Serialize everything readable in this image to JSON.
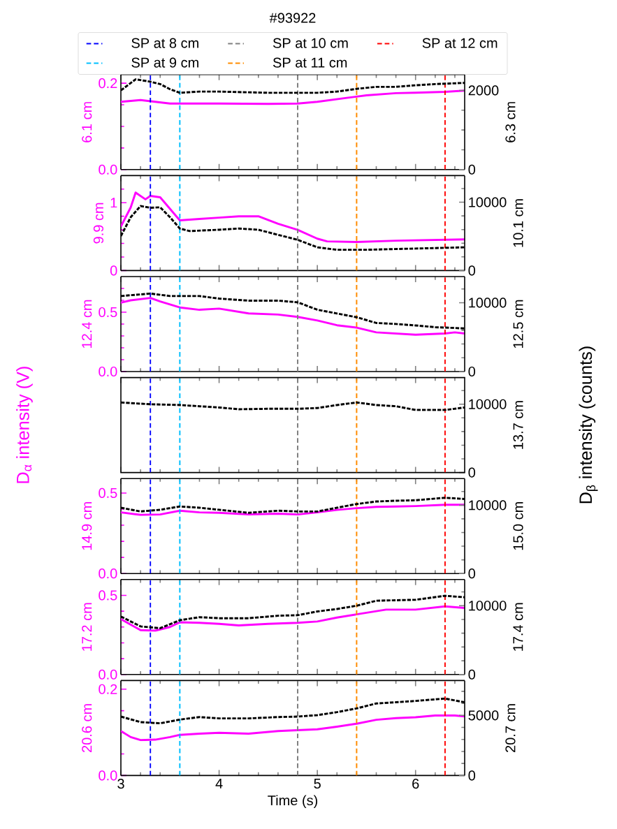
{
  "chart_data": [
    {
      "type": "line",
      "title": "#93922",
      "legend": "top",
      "tick_labels": "y",
      "ylabel": "6.1 cm",
      "y2label": "6.3 cm",
      "xlim": [
        3,
        6.5
      ],
      "xticks": [
        3,
        {
          "value": 3.2,
          "label": null
        },
        {
          "value": 3.4,
          "label": null
        },
        {
          "value": 3.6,
          "label": null
        },
        {
          "value": 3.8,
          "label": null
        },
        4,
        {
          "value": 4.2,
          "label": null
        },
        {
          "value": 4.4,
          "label": null
        },
        {
          "value": 4.6,
          "label": null
        },
        {
          "value": 4.8,
          "label": null
        },
        5,
        {
          "value": 5.2,
          "label": null
        },
        {
          "value": 5.4,
          "label": null
        },
        {
          "value": 5.6,
          "label": null
        },
        {
          "value": 5.8,
          "label": null
        },
        6,
        {
          "value": 6.2,
          "label": null
        },
        {
          "value": 6.4,
          "label": null
        }
      ],
      "ylim": [
        0,
        0.22
      ],
      "yticks": [
        {
          "value": 0,
          "label": "0.0"
        },
        {
          "value": 0.05,
          "label": null
        },
        {
          "value": 0.1,
          "label": null
        },
        {
          "value": 0.15,
          "label": null
        },
        {
          "value": 0.2,
          "label": "0.2"
        }
      ],
      "y2lim": [
        0,
        2400
      ],
      "y2ticks": [
        0,
        {
          "value": 500,
          "label": null
        },
        {
          "value": 1000,
          "label": null
        },
        {
          "value": 1500,
          "label": null
        },
        2000
      ],
      "ref_lines": [
        {
          "axis": "x",
          "value": 3.3,
          "label": "SP at 8 cm",
          "color": "#0000ff",
          "line_style": "dashed"
        },
        {
          "axis": "x",
          "value": 3.6,
          "label": "SP at 9 cm",
          "color": "#00bfff",
          "line_style": "dashed"
        },
        {
          "axis": "x",
          "value": 4.8,
          "label": "SP at 10 cm",
          "color": "#808080",
          "line_style": "dashed"
        },
        {
          "axis": "x",
          "value": 5.4,
          "label": "SP at 11 cm",
          "color": "#ff8c00",
          "line_style": "dashed"
        },
        {
          "axis": "x",
          "value": 6.3,
          "label": "SP at 12 cm",
          "color": "#ff0000",
          "line_style": "dashed"
        }
      ],
      "series": [
        {
          "color": "#ff00ff",
          "axis": "y",
          "line_style": "solid",
          "x": [
            3,
            3.2,
            3.5,
            4,
            4.5,
            4.8,
            5,
            5.3,
            5.5,
            5.8,
            6,
            6.3,
            6.5
          ],
          "values": [
            0.157,
            0.161,
            0.153,
            0.153,
            0.152,
            0.153,
            0.157,
            0.166,
            0.172,
            0.177,
            0.178,
            0.18,
            0.183
          ]
        },
        {
          "color": "#000000",
          "axis": "y2",
          "line_style": "dashed",
          "x": [
            3,
            3.15,
            3.3,
            3.4,
            3.5,
            3.6,
            3.8,
            4,
            4.5,
            4.8,
            5,
            5.2,
            5.4,
            5.6,
            5.8,
            6,
            6.2,
            6.5
          ],
          "values": [
            2000,
            2280,
            2220,
            2160,
            2030,
            1940,
            1970,
            1970,
            1940,
            1940,
            1940,
            1970,
            2040,
            2090,
            2090,
            2130,
            2160,
            2190
          ]
        }
      ]
    },
    {
      "type": "line",
      "tick_labels": "y",
      "ylabel": "9.9 cm",
      "y2label": "10.1 cm",
      "xlim": [
        3,
        6.5
      ],
      "xticks": [
        3,
        {
          "value": 3.2,
          "label": null
        },
        {
          "value": 3.4,
          "label": null
        },
        {
          "value": 3.6,
          "label": null
        },
        {
          "value": 3.8,
          "label": null
        },
        4,
        {
          "value": 4.2,
          "label": null
        },
        {
          "value": 4.4,
          "label": null
        },
        {
          "value": 4.6,
          "label": null
        },
        {
          "value": 4.8,
          "label": null
        },
        5,
        {
          "value": 5.2,
          "label": null
        },
        {
          "value": 5.4,
          "label": null
        },
        {
          "value": 5.6,
          "label": null
        },
        {
          "value": 5.8,
          "label": null
        },
        6,
        {
          "value": 6.2,
          "label": null
        },
        {
          "value": 6.4,
          "label": null
        }
      ],
      "ylim": [
        0,
        1.4
      ],
      "yticks": [
        0,
        {
          "value": 0.2,
          "label": null
        },
        {
          "value": 0.4,
          "label": null
        },
        {
          "value": 0.6,
          "label": null
        },
        {
          "value": 0.8,
          "label": null
        },
        1,
        {
          "value": 1.2,
          "label": null
        }
      ],
      "y2lim": [
        0,
        13900
      ],
      "y2ticks": [
        0,
        {
          "value": 2000,
          "label": null
        },
        {
          "value": 4000,
          "label": null
        },
        {
          "value": 6000,
          "label": null
        },
        {
          "value": 8000,
          "label": null
        },
        10000,
        {
          "value": 12000,
          "label": null
        }
      ],
      "ref_lines": [
        {
          "axis": "x",
          "value": 3.3,
          "color": "#0000ff",
          "line_style": "dashed"
        },
        {
          "axis": "x",
          "value": 3.6,
          "color": "#00bfff",
          "line_style": "dashed"
        },
        {
          "axis": "x",
          "value": 4.8,
          "color": "#808080",
          "line_style": "dashed"
        },
        {
          "axis": "x",
          "value": 5.4,
          "color": "#ff8c00",
          "line_style": "dashed"
        },
        {
          "axis": "x",
          "value": 6.3,
          "color": "#ff0000",
          "line_style": "dashed"
        }
      ],
      "series": [
        {
          "color": "#ff00ff",
          "axis": "y",
          "line_style": "solid",
          "x": [
            3,
            3.1,
            3.15,
            3.25,
            3.3,
            3.4,
            3.5,
            3.6,
            3.8,
            4,
            4.2,
            4.4,
            4.6,
            4.8,
            5,
            5.1,
            5.4,
            5.8,
            6.5
          ],
          "values": [
            0.65,
            0.93,
            1.15,
            1.05,
            1.1,
            1.08,
            0.91,
            0.74,
            0.76,
            0.78,
            0.8,
            0.8,
            0.69,
            0.6,
            0.47,
            0.43,
            0.42,
            0.44,
            0.46
          ]
        },
        {
          "color": "#000000",
          "axis": "y2",
          "line_style": "dashed",
          "x": [
            3,
            3.1,
            3.2,
            3.3,
            3.4,
            3.5,
            3.6,
            3.7,
            4,
            4.2,
            4.4,
            4.6,
            4.8,
            5,
            5.2,
            5.5,
            6,
            6.5
          ],
          "values": [
            5050,
            7800,
            9440,
            9190,
            9260,
            7800,
            6150,
            5780,
            5970,
            6150,
            5970,
            5230,
            4500,
            3400,
            3040,
            3040,
            3220,
            3400
          ]
        }
      ]
    },
    {
      "type": "line",
      "tick_labels": "y",
      "ylabel": "12.4 cm",
      "y2label": "12.5 cm",
      "xlim": [
        3,
        6.5
      ],
      "xticks": [
        3,
        {
          "value": 3.2,
          "label": null
        },
        {
          "value": 3.4,
          "label": null
        },
        {
          "value": 3.6,
          "label": null
        },
        {
          "value": 3.8,
          "label": null
        },
        4,
        {
          "value": 4.2,
          "label": null
        },
        {
          "value": 4.4,
          "label": null
        },
        {
          "value": 4.6,
          "label": null
        },
        {
          "value": 4.8,
          "label": null
        },
        5,
        {
          "value": 5.2,
          "label": null
        },
        {
          "value": 5.4,
          "label": null
        },
        {
          "value": 5.6,
          "label": null
        },
        {
          "value": 5.8,
          "label": null
        },
        6,
        {
          "value": 6.2,
          "label": null
        },
        {
          "value": 6.4,
          "label": null
        }
      ],
      "ylim": [
        0,
        0.8
      ],
      "yticks": [
        {
          "value": 0,
          "label": "0.0"
        },
        {
          "value": 0.1,
          "label": null
        },
        {
          "value": 0.2,
          "label": null
        },
        {
          "value": 0.3,
          "label": null
        },
        {
          "value": 0.4,
          "label": null
        },
        {
          "value": 0.5,
          "label": "0.5"
        },
        {
          "value": 0.6,
          "label": null
        },
        {
          "value": 0.7,
          "label": null
        }
      ],
      "y2lim": [
        0,
        13800
      ],
      "y2ticks": [
        0,
        {
          "value": 2000,
          "label": null
        },
        {
          "value": 4000,
          "label": null
        },
        {
          "value": 6000,
          "label": null
        },
        {
          "value": 8000,
          "label": null
        },
        10000,
        {
          "value": 12000,
          "label": null
        }
      ],
      "ref_lines": [
        {
          "axis": "x",
          "value": 3.3,
          "color": "#0000ff",
          "line_style": "dashed"
        },
        {
          "axis": "x",
          "value": 3.6,
          "color": "#00bfff",
          "line_style": "dashed"
        },
        {
          "axis": "x",
          "value": 4.8,
          "color": "#808080",
          "line_style": "dashed"
        },
        {
          "axis": "x",
          "value": 5.4,
          "color": "#ff8c00",
          "line_style": "dashed"
        },
        {
          "axis": "x",
          "value": 6.3,
          "color": "#ff0000",
          "line_style": "dashed"
        }
      ],
      "series": [
        {
          "color": "#ff00ff",
          "axis": "y",
          "line_style": "solid",
          "x": [
            3,
            3.1,
            3.3,
            3.4,
            3.6,
            3.8,
            4,
            4.3,
            4.6,
            4.8,
            5,
            5.2,
            5.4,
            5.6,
            5.8,
            6,
            6.3,
            6.4,
            6.5
          ],
          "values": [
            0.58,
            0.6,
            0.62,
            0.59,
            0.54,
            0.52,
            0.53,
            0.49,
            0.48,
            0.46,
            0.43,
            0.39,
            0.37,
            0.33,
            0.32,
            0.31,
            0.32,
            0.33,
            0.32
          ]
        },
        {
          "color": "#000000",
          "axis": "y2",
          "line_style": "dashed",
          "x": [
            3,
            3.3,
            3.5,
            3.8,
            4,
            4.3,
            4.6,
            4.8,
            5,
            5.2,
            5.4,
            5.6,
            5.8,
            6,
            6.2,
            6.4,
            6.5
          ],
          "values": [
            10970,
            11330,
            10970,
            10970,
            10600,
            10300,
            10300,
            10060,
            8980,
            8430,
            7890,
            7060,
            6910,
            6700,
            6440,
            6330,
            6260
          ]
        }
      ]
    },
    {
      "type": "line",
      "tick_labels": "y",
      "y2label": "13.7 cm",
      "annotations": [
        "D$_{α}$ intensity (V)",
        "D$_{β}$ intensity (counts)"
      ],
      "xlim": [
        3,
        6.5
      ],
      "xticks": [
        3,
        {
          "value": 3.2,
          "label": null
        },
        {
          "value": 3.4,
          "label": null
        },
        {
          "value": 3.6,
          "label": null
        },
        {
          "value": 3.8,
          "label": null
        },
        4,
        {
          "value": 4.2,
          "label": null
        },
        {
          "value": 4.4,
          "label": null
        },
        {
          "value": 4.6,
          "label": null
        },
        {
          "value": 4.8,
          "label": null
        },
        5,
        {
          "value": 5.2,
          "label": null
        },
        {
          "value": 5.4,
          "label": null
        },
        {
          "value": 5.6,
          "label": null
        },
        {
          "value": 5.8,
          "label": null
        },
        6,
        {
          "value": 6.2,
          "label": null
        },
        {
          "value": 6.4,
          "label": null
        }
      ],
      "y2lim": [
        0,
        13900
      ],
      "y2ticks": [
        0,
        {
          "value": 2000,
          "label": null
        },
        {
          "value": 4000,
          "label": null
        },
        {
          "value": 6000,
          "label": null
        },
        {
          "value": 8000,
          "label": null
        },
        10000,
        {
          "value": 12000,
          "label": null
        }
      ],
      "ref_lines": [
        {
          "axis": "x",
          "value": 3.3,
          "color": "#0000ff",
          "line_style": "dashed"
        },
        {
          "axis": "x",
          "value": 3.6,
          "color": "#00bfff",
          "line_style": "dashed"
        },
        {
          "axis": "x",
          "value": 4.8,
          "color": "#808080",
          "line_style": "dashed"
        },
        {
          "axis": "x",
          "value": 5.4,
          "color": "#ff8c00",
          "line_style": "dashed"
        },
        {
          "axis": "x",
          "value": 6.3,
          "color": "#ff0000",
          "line_style": "dashed"
        }
      ],
      "series": [
        {
          "color": "#000000",
          "axis": "y2",
          "line_style": "dashed",
          "x": [
            3,
            3.3,
            3.6,
            3.8,
            4,
            4.2,
            4.5,
            4.8,
            5,
            5.2,
            5.4,
            5.6,
            5.8,
            6,
            6.3,
            6.5
          ],
          "values": [
            10250,
            9990,
            9880,
            9700,
            9520,
            9260,
            9330,
            9330,
            9440,
            9880,
            10250,
            9880,
            9700,
            9150,
            9150,
            9520
          ]
        }
      ]
    },
    {
      "type": "line",
      "tick_labels": "y",
      "ylabel": "14.9 cm",
      "y2label": "15.0 cm",
      "xlim": [
        3,
        6.5
      ],
      "xticks": [
        3,
        {
          "value": 3.2,
          "label": null
        },
        {
          "value": 3.4,
          "label": null
        },
        {
          "value": 3.6,
          "label": null
        },
        {
          "value": 3.8,
          "label": null
        },
        4,
        {
          "value": 4.2,
          "label": null
        },
        {
          "value": 4.4,
          "label": null
        },
        {
          "value": 4.6,
          "label": null
        },
        {
          "value": 4.8,
          "label": null
        },
        5,
        {
          "value": 5.2,
          "label": null
        },
        {
          "value": 5.4,
          "label": null
        },
        {
          "value": 5.6,
          "label": null
        },
        {
          "value": 5.8,
          "label": null
        },
        6,
        {
          "value": 6.2,
          "label": null
        },
        {
          "value": 6.4,
          "label": null
        }
      ],
      "ylim": [
        0,
        0.59
      ],
      "yticks": [
        {
          "value": 0,
          "label": "0.0"
        },
        {
          "value": 0.1,
          "label": null
        },
        {
          "value": 0.2,
          "label": null
        },
        {
          "value": 0.3,
          "label": null
        },
        {
          "value": 0.4,
          "label": null
        },
        {
          "value": 0.5,
          "label": "0.5"
        }
      ],
      "y2lim": [
        0,
        13900
      ],
      "y2ticks": [
        0,
        {
          "value": 2000,
          "label": null
        },
        {
          "value": 4000,
          "label": null
        },
        {
          "value": 6000,
          "label": null
        },
        {
          "value": 8000,
          "label": null
        },
        10000,
        {
          "value": 12000,
          "label": null
        }
      ],
      "ref_lines": [
        {
          "axis": "x",
          "value": 3.3,
          "color": "#0000ff",
          "line_style": "dashed"
        },
        {
          "axis": "x",
          "value": 3.6,
          "color": "#00bfff",
          "line_style": "dashed"
        },
        {
          "axis": "x",
          "value": 4.8,
          "color": "#808080",
          "line_style": "dashed"
        },
        {
          "axis": "x",
          "value": 5.4,
          "color": "#ff8c00",
          "line_style": "dashed"
        },
        {
          "axis": "x",
          "value": 6.3,
          "color": "#ff0000",
          "line_style": "dashed"
        }
      ],
      "series": [
        {
          "color": "#ff00ff",
          "axis": "y",
          "line_style": "solid",
          "x": [
            3,
            3.2,
            3.4,
            3.6,
            3.8,
            4,
            4.3,
            4.6,
            4.8,
            5,
            5.2,
            5.4,
            5.6,
            5.8,
            6,
            6.3,
            6.5
          ],
          "values": [
            0.38,
            0.364,
            0.367,
            0.39,
            0.38,
            0.377,
            0.367,
            0.372,
            0.367,
            0.38,
            0.395,
            0.406,
            0.414,
            0.416,
            0.419,
            0.427,
            0.427
          ]
        },
        {
          "color": "#000000",
          "axis": "y2",
          "line_style": "dashed",
          "x": [
            3,
            3.2,
            3.4,
            3.6,
            3.8,
            4,
            4.3,
            4.6,
            4.8,
            5,
            5.2,
            5.4,
            5.6,
            5.8,
            6,
            6.3,
            6.5
          ],
          "values": [
            9630,
            9080,
            9330,
            9810,
            9630,
            9330,
            8890,
            9190,
            9080,
            9080,
            9630,
            10170,
            10540,
            10650,
            10720,
            11090,
            10910
          ]
        }
      ]
    },
    {
      "type": "line",
      "tick_labels": "y",
      "ylabel": "17.2 cm",
      "y2label": "17.4 cm",
      "xlim": [
        3,
        6.5
      ],
      "xticks": [
        3,
        {
          "value": 3.2,
          "label": null
        },
        {
          "value": 3.4,
          "label": null
        },
        {
          "value": 3.6,
          "label": null
        },
        {
          "value": 3.8,
          "label": null
        },
        4,
        {
          "value": 4.2,
          "label": null
        },
        {
          "value": 4.4,
          "label": null
        },
        {
          "value": 4.6,
          "label": null
        },
        {
          "value": 4.8,
          "label": null
        },
        5,
        {
          "value": 5.2,
          "label": null
        },
        {
          "value": 5.4,
          "label": null
        },
        {
          "value": 5.6,
          "label": null
        },
        {
          "value": 5.8,
          "label": null
        },
        6,
        {
          "value": 6.2,
          "label": null
        },
        {
          "value": 6.4,
          "label": null
        }
      ],
      "ylim": [
        0,
        0.6
      ],
      "yticks": [
        {
          "value": 0,
          "label": "0.0"
        },
        {
          "value": 0.1,
          "label": null
        },
        {
          "value": 0.2,
          "label": null
        },
        {
          "value": 0.3,
          "label": null
        },
        {
          "value": 0.4,
          "label": null
        },
        {
          "value": 0.5,
          "label": "0.5"
        }
      ],
      "y2lim": [
        0,
        13800
      ],
      "y2ticks": [
        0,
        {
          "value": 2000,
          "label": null
        },
        {
          "value": 4000,
          "label": null
        },
        {
          "value": 6000,
          "label": null
        },
        {
          "value": 8000,
          "label": null
        },
        10000,
        {
          "value": 12000,
          "label": null
        }
      ],
      "ref_lines": [
        {
          "axis": "x",
          "value": 3.3,
          "color": "#0000ff",
          "line_style": "dashed"
        },
        {
          "axis": "x",
          "value": 3.6,
          "color": "#00bfff",
          "line_style": "dashed"
        },
        {
          "axis": "x",
          "value": 4.8,
          "color": "#808080",
          "line_style": "dashed"
        },
        {
          "axis": "x",
          "value": 5.4,
          "color": "#ff8c00",
          "line_style": "dashed"
        },
        {
          "axis": "x",
          "value": 6.3,
          "color": "#ff0000",
          "line_style": "dashed"
        }
      ],
      "series": [
        {
          "color": "#ff00ff",
          "axis": "y",
          "line_style": "solid",
          "x": [
            3,
            3.2,
            3.35,
            3.5,
            3.6,
            3.8,
            4,
            4.2,
            4.5,
            4.8,
            5,
            5.2,
            5.4,
            5.6,
            5.7,
            6,
            6.3,
            6.5
          ],
          "values": [
            0.35,
            0.28,
            0.277,
            0.3,
            0.33,
            0.327,
            0.32,
            0.31,
            0.32,
            0.327,
            0.335,
            0.36,
            0.38,
            0.4,
            0.41,
            0.41,
            0.43,
            0.42
          ]
        },
        {
          "color": "#000000",
          "axis": "y2",
          "line_style": "dashed",
          "x": [
            3,
            3.2,
            3.4,
            3.6,
            3.8,
            4,
            4.3,
            4.6,
            4.8,
            5,
            5.2,
            5.4,
            5.6,
            5.8,
            6,
            6.3,
            6.5
          ],
          "values": [
            8430,
            6990,
            6730,
            7890,
            8330,
            8180,
            8180,
            8540,
            8620,
            9160,
            9520,
            9990,
            10720,
            10790,
            10860,
            11440,
            11220
          ]
        }
      ]
    },
    {
      "type": "line",
      "xlabel": "Time (s)",
      "ylabel": "20.6 cm",
      "y2label": "20.7 cm",
      "xlim": [
        3,
        6.5
      ],
      "xticks": [
        3,
        {
          "value": 3.2,
          "label": null
        },
        {
          "value": 3.4,
          "label": null
        },
        {
          "value": 3.6,
          "label": null
        },
        {
          "value": 3.8,
          "label": null
        },
        4,
        {
          "value": 4.2,
          "label": null
        },
        {
          "value": 4.4,
          "label": null
        },
        {
          "value": 4.6,
          "label": null
        },
        {
          "value": 4.8,
          "label": null
        },
        5,
        {
          "value": 5.2,
          "label": null
        },
        {
          "value": 5.4,
          "label": null
        },
        {
          "value": 5.6,
          "label": null
        },
        {
          "value": 5.8,
          "label": null
        },
        6,
        {
          "value": 6.2,
          "label": null
        },
        {
          "value": 6.4,
          "label": null
        }
      ],
      "ylim": [
        0,
        0.22
      ],
      "yticks": [
        {
          "value": 0,
          "label": "0.0"
        },
        {
          "value": 0.05,
          "label": null
        },
        {
          "value": 0.1,
          "label": null
        },
        {
          "value": 0.15,
          "label": null
        },
        {
          "value": 0.2,
          "label": "0.2"
        }
      ],
      "y2lim": [
        0,
        7900
      ],
      "y2ticks": [
        0,
        {
          "value": 1000,
          "label": null
        },
        {
          "value": 2000,
          "label": null
        },
        {
          "value": 3000,
          "label": null
        },
        {
          "value": 4000,
          "label": null
        },
        5000,
        {
          "value": 6000,
          "label": null
        },
        {
          "value": 7000,
          "label": null
        }
      ],
      "ref_lines": [
        {
          "axis": "x",
          "value": 3.3,
          "color": "#0000ff",
          "line_style": "dashed"
        },
        {
          "axis": "x",
          "value": 3.6,
          "color": "#00bfff",
          "line_style": "dashed"
        },
        {
          "axis": "x",
          "value": 4.8,
          "color": "#808080",
          "line_style": "dashed"
        },
        {
          "axis": "x",
          "value": 5.4,
          "color": "#ff8c00",
          "line_style": "dashed"
        },
        {
          "axis": "x",
          "value": 6.3,
          "color": "#ff0000",
          "line_style": "dashed"
        }
      ],
      "series": [
        {
          "color": "#ff00ff",
          "axis": "y",
          "line_style": "solid",
          "x": [
            3,
            3.1,
            3.2,
            3.35,
            3.5,
            3.6,
            3.8,
            4,
            4.3,
            4.6,
            4.8,
            5,
            5.2,
            5.4,
            5.6,
            5.8,
            6,
            6.2,
            6.4,
            6.5
          ],
          "values": [
            0.103,
            0.089,
            0.082,
            0.083,
            0.089,
            0.094,
            0.097,
            0.099,
            0.097,
            0.103,
            0.105,
            0.107,
            0.113,
            0.12,
            0.129,
            0.133,
            0.135,
            0.139,
            0.139,
            0.137
          ]
        },
        {
          "color": "#000000",
          "axis": "y2",
          "line_style": "dashed",
          "x": [
            3,
            3.2,
            3.4,
            3.6,
            3.8,
            4,
            4.3,
            4.6,
            4.8,
            5,
            5.2,
            5.4,
            5.6,
            5.8,
            6,
            6.3,
            6.5
          ],
          "values": [
            4900,
            4440,
            4340,
            4650,
            4860,
            4750,
            4750,
            4860,
            4900,
            5020,
            5270,
            5580,
            5990,
            6090,
            6200,
            6400,
            6090
          ]
        }
      ]
    }
  ]
}
